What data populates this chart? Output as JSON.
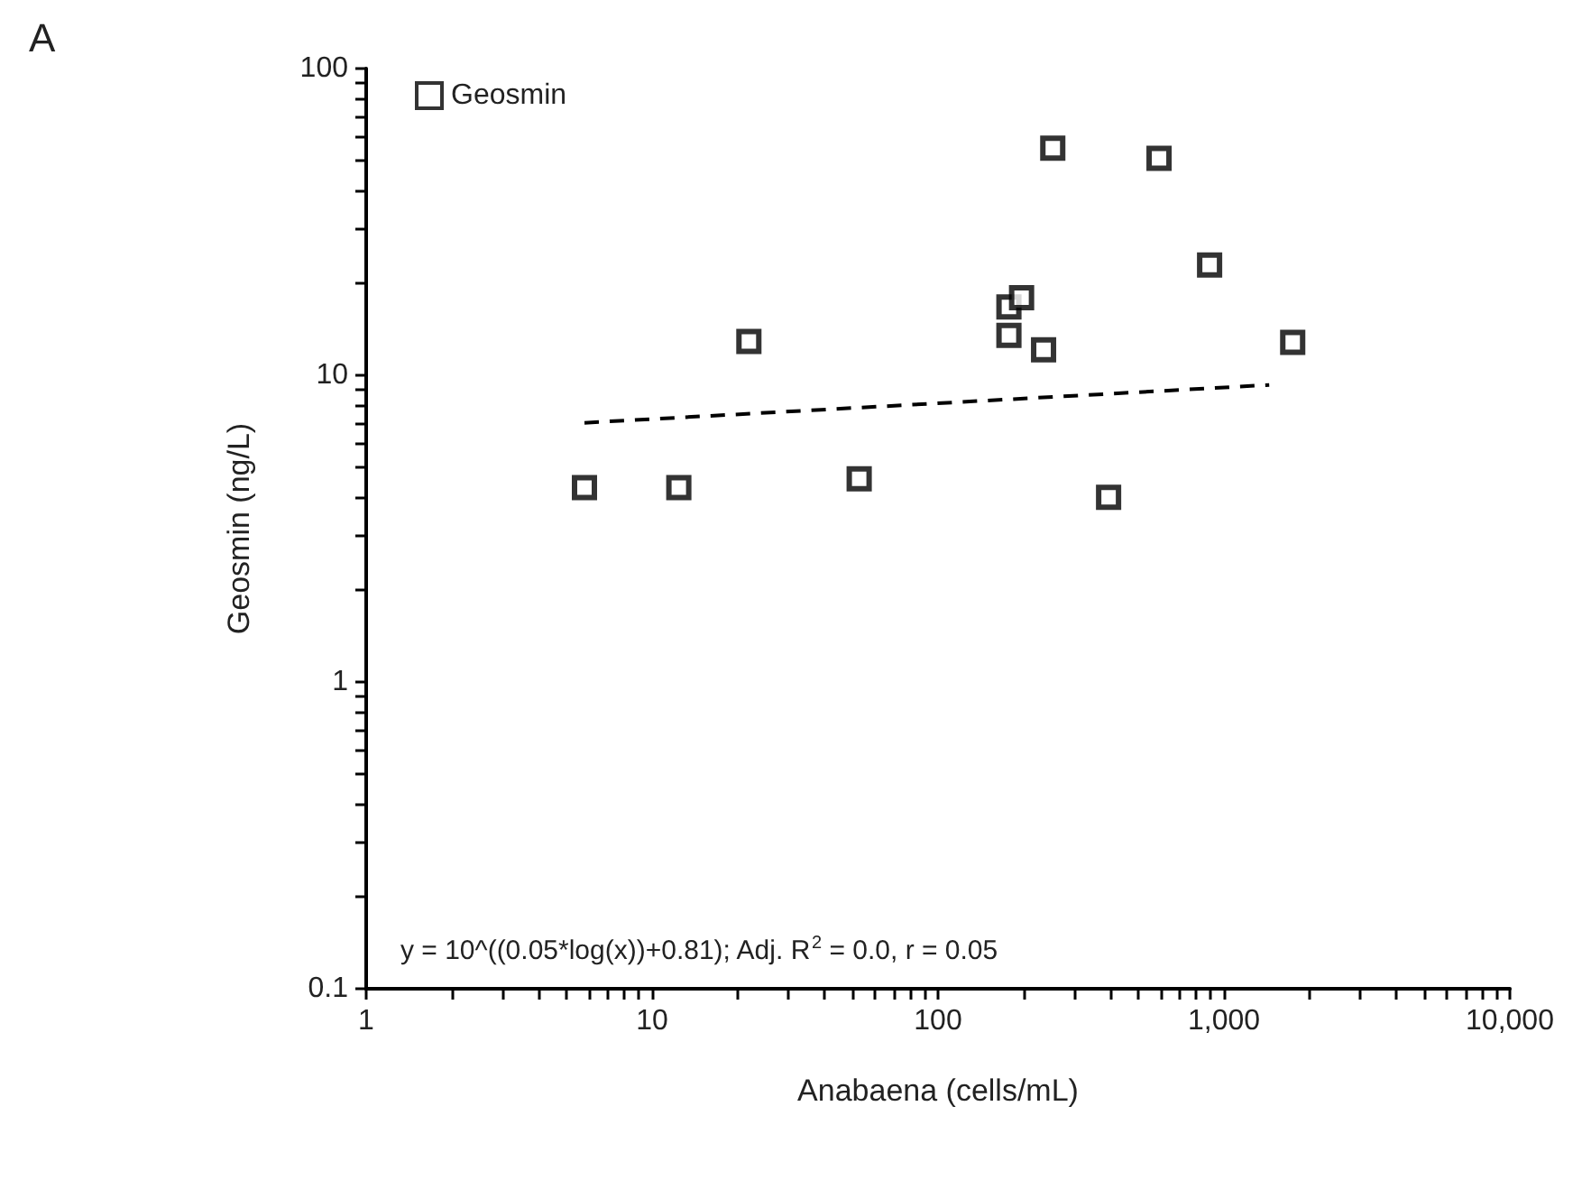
{
  "chart_data": {
    "type": "scatter",
    "xlabel": "Anabaena (cells/mL)",
    "ylabel": "Geosmin (ng/L)",
    "annotations": [
      "A",
      "y = 10^((0.05*log(x))+0.81); Adj. R$^{2}$ = 0.0, r = 0.05"
    ],
    "log": "xy",
    "grid": false,
    "legend": "top left",
    "marker": "square",
    "xlim": [
      1,
      10000
    ],
    "ylim": [
      0.1,
      100
    ],
    "xticks": [
      1,
      {
        "value": 2,
        "label": null
      },
      {
        "value": 3,
        "label": null
      },
      {
        "value": 4,
        "label": null
      },
      {
        "value": 5,
        "label": null
      },
      {
        "value": 6,
        "label": null
      },
      {
        "value": 7,
        "label": null
      },
      {
        "value": 8,
        "label": null
      },
      {
        "value": 9,
        "label": null
      },
      10,
      {
        "value": 20,
        "label": null
      },
      {
        "value": 30,
        "label": null
      },
      {
        "value": 40,
        "label": null
      },
      {
        "value": 50,
        "label": null
      },
      {
        "value": 60,
        "label": null
      },
      {
        "value": 70,
        "label": null
      },
      {
        "value": 80,
        "label": null
      },
      {
        "value": 90,
        "label": null
      },
      100,
      {
        "value": 200,
        "label": null
      },
      {
        "value": 300,
        "label": null
      },
      {
        "value": 400,
        "label": null
      },
      {
        "value": 500,
        "label": null
      },
      {
        "value": 600,
        "label": null
      },
      {
        "value": 700,
        "label": null
      },
      {
        "value": 800,
        "label": null
      },
      {
        "value": 900,
        "label": null
      },
      {
        "value": 1000,
        "label": "1,000"
      },
      {
        "value": 2000,
        "label": null
      },
      {
        "value": 3000,
        "label": null
      },
      {
        "value": 4000,
        "label": null
      },
      {
        "value": 5000,
        "label": null
      },
      {
        "value": 6000,
        "label": null
      },
      {
        "value": 7000,
        "label": null
      },
      {
        "value": 8000,
        "label": null
      },
      {
        "value": 9000,
        "label": null
      },
      {
        "value": 10000,
        "label": "10,000"
      }
    ],
    "yticks": [
      0.1,
      {
        "value": 0.2,
        "label": null
      },
      {
        "value": 0.3,
        "label": null
      },
      {
        "value": 0.4,
        "label": null
      },
      {
        "value": 0.5,
        "label": null
      },
      {
        "value": 0.6,
        "label": null
      },
      {
        "value": 0.7,
        "label": null
      },
      {
        "value": 0.8,
        "label": null
      },
      {
        "value": 0.9,
        "label": null
      },
      1,
      {
        "value": 2,
        "label": null
      },
      {
        "value": 3,
        "label": null
      },
      {
        "value": 4,
        "label": null
      },
      {
        "value": 5,
        "label": null
      },
      {
        "value": 6,
        "label": null
      },
      {
        "value": 7,
        "label": null
      },
      {
        "value": 8,
        "label": null
      },
      {
        "value": 9,
        "label": null
      },
      10,
      {
        "value": 20,
        "label": null
      },
      {
        "value": 30,
        "label": null
      },
      {
        "value": 40,
        "label": null
      },
      {
        "value": 50,
        "label": null
      },
      {
        "value": 60,
        "label": null
      },
      {
        "value": 70,
        "label": null
      },
      {
        "value": 80,
        "label": null
      },
      {
        "value": 90,
        "label": null
      },
      100
    ],
    "series": [
      {
        "name": "Geosmin",
        "color": "#000000",
        "x": [
          5.8,
          12.4,
          21.8,
          53,
          177,
          196,
          177,
          234,
          252,
          395,
          593,
          891,
          1740
        ],
        "values": [
          4.3,
          4.3,
          12.9,
          4.6,
          16.7,
          17.9,
          13.5,
          12.1,
          55,
          4.0,
          51,
          22.9,
          12.8
        ]
      },
      {
        "type": "line",
        "color": "#000000",
        "marker": "none",
        "line_style": "dashed",
        "x": [
          5.8,
          1440
        ],
        "values": [
          7.0,
          9.3
        ]
      }
    ]
  }
}
